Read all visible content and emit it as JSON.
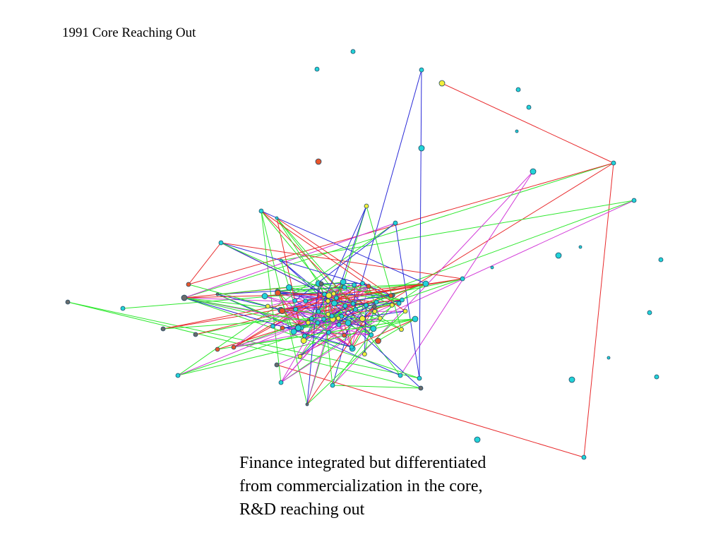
{
  "slide": {
    "title": "1991 Core Reaching Out",
    "caption_lines": [
      "Finance integrated but differentiated",
      "from commercialization in the core,",
      "R&D reaching out"
    ]
  },
  "colors": {
    "background": "#ffffff",
    "node_cyan": "#22d3d8",
    "node_yellow": "#f2ee3a",
    "node_orange": "#e8552a",
    "node_gray": "#6b6b6b",
    "node_outline": "#1f4a66",
    "edge_red": "#e8292b",
    "edge_green": "#2ee82e",
    "edge_blue": "#2b2bd8",
    "edge_magenta": "#d23ad8"
  },
  "network": {
    "description": "",
    "node_color_categories": [
      "cyan",
      "yellow",
      "orange",
      "gray"
    ],
    "edge_color_categories": [
      "red",
      "green",
      "blue",
      "magenta"
    ]
  }
}
